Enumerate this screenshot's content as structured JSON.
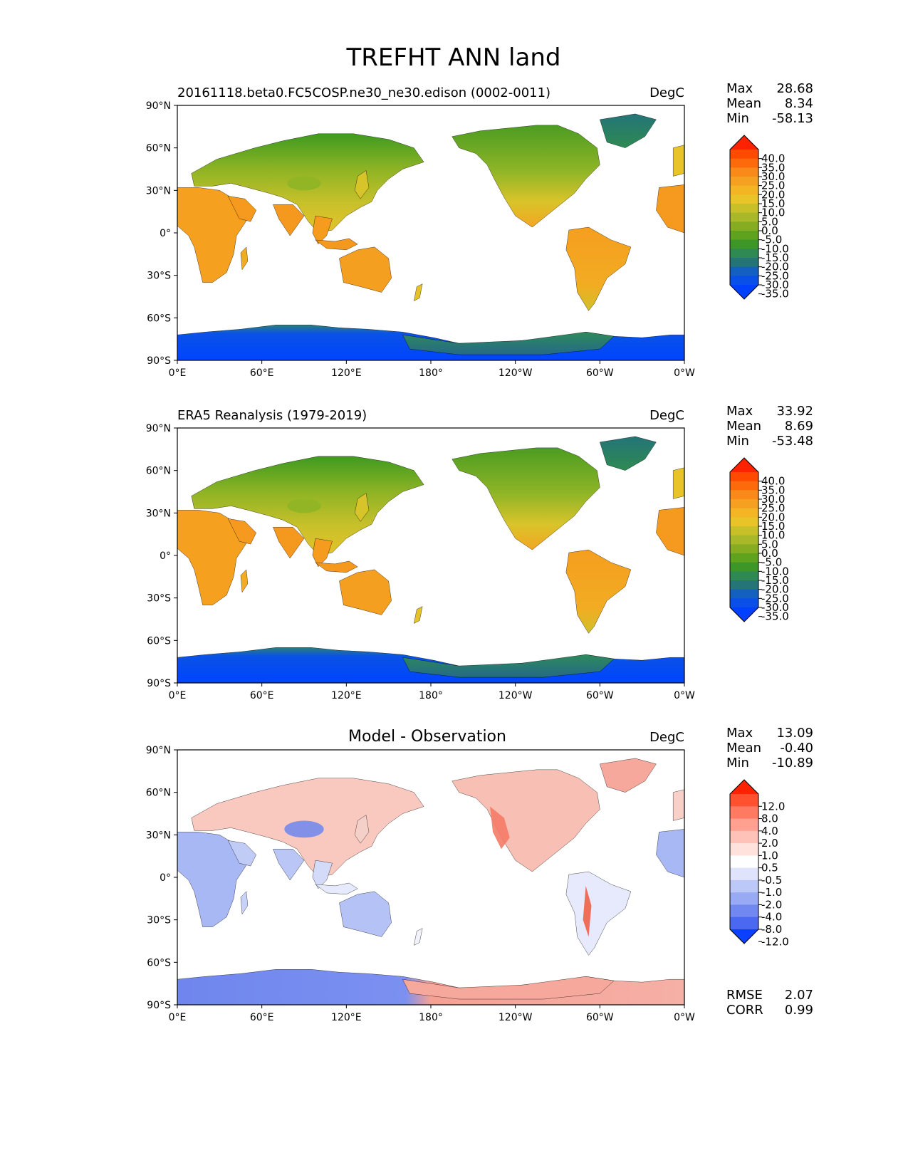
{
  "figure": {
    "title": "TREFHT ANN land",
    "units_label": "DegC"
  },
  "axes": {
    "lat_labels": [
      "90°N",
      "60°N",
      "30°N",
      "0°",
      "30°S",
      "60°S",
      "90°S"
    ],
    "lon_labels": [
      "0°E",
      "60°E",
      "120°E",
      "180°",
      "120°W",
      "60°W",
      "0°W"
    ],
    "lat_values": [
      90,
      60,
      30,
      0,
      -30,
      -60,
      -90
    ],
    "lon_values": [
      0,
      60,
      120,
      180,
      240,
      300,
      360
    ]
  },
  "panels": [
    {
      "id": "model",
      "title": "20161118.beta0.FC5COSP.ne30_ne30.edison (0002-0011)",
      "units": "DegC",
      "stats": [
        {
          "label": "Max",
          "value": "28.68"
        },
        {
          "label": "Mean",
          "value": "8.34"
        },
        {
          "label": "Min",
          "value": "-58.13"
        }
      ],
      "colorbar": {
        "labels": [
          "40.0",
          "35.0",
          "30.0",
          "25.0",
          "20.0",
          "15.0",
          "10.0",
          "5.0",
          "0.0",
          "-5.0",
          "-10.0",
          "-15.0",
          "-20.0",
          "-25.0",
          "-30.0",
          "-35.0"
        ],
        "colors": [
          "#ff2200",
          "#ff4a00",
          "#fd6a0c",
          "#f98a1a",
          "#f5a020",
          "#f3b524",
          "#e8c428",
          "#c8c028",
          "#a8b828",
          "#86ad22",
          "#5ea21e",
          "#3c9628",
          "#2e8a52",
          "#247478",
          "#1460c0",
          "#0a50e8",
          "#0040ff"
        ]
      }
    },
    {
      "id": "obs",
      "title": "ERA5 Reanalysis (1979-2019)",
      "units": "DegC",
      "stats": [
        {
          "label": "Max",
          "value": "33.92"
        },
        {
          "label": "Mean",
          "value": "8.69"
        },
        {
          "label": "Min",
          "value": "-53.48"
        }
      ],
      "colorbar": {
        "labels": [
          "40.0",
          "35.0",
          "30.0",
          "25.0",
          "20.0",
          "15.0",
          "10.0",
          "5.0",
          "0.0",
          "-5.0",
          "-10.0",
          "-15.0",
          "-20.0",
          "-25.0",
          "-30.0",
          "-35.0"
        ],
        "colors": [
          "#ff2200",
          "#ff4a00",
          "#fd6a0c",
          "#f98a1a",
          "#f5a020",
          "#f3b524",
          "#e8c428",
          "#c8c028",
          "#a8b828",
          "#86ad22",
          "#5ea21e",
          "#3c9628",
          "#2e8a52",
          "#247478",
          "#1460c0",
          "#0a50e8",
          "#0040ff"
        ]
      }
    },
    {
      "id": "diff",
      "title": "Model - Observation",
      "units": "DegC",
      "stats": [
        {
          "label": "Max",
          "value": "13.09"
        },
        {
          "label": "Mean",
          "value": "-0.40"
        },
        {
          "label": "Min",
          "value": "-10.89"
        }
      ],
      "extra_stats": [
        {
          "label": "RMSE",
          "value": "2.07"
        },
        {
          "label": "CORR",
          "value": "0.99"
        }
      ],
      "colorbar": {
        "labels": [
          "12.0",
          "8.0",
          "4.0",
          "2.0",
          "1.0",
          "0.5",
          "-0.5",
          "-1.0",
          "-2.0",
          "-4.0",
          "-8.0",
          "-12.0"
        ],
        "colors": [
          "#ff2200",
          "#ff5030",
          "#ff7a60",
          "#ffa090",
          "#ffc2b8",
          "#ffe2dc",
          "#ffffff",
          "#dfe4fc",
          "#bcc8f8",
          "#98aaf4",
          "#7088f0",
          "#4a68f0",
          "#0a40ff"
        ]
      }
    }
  ]
}
